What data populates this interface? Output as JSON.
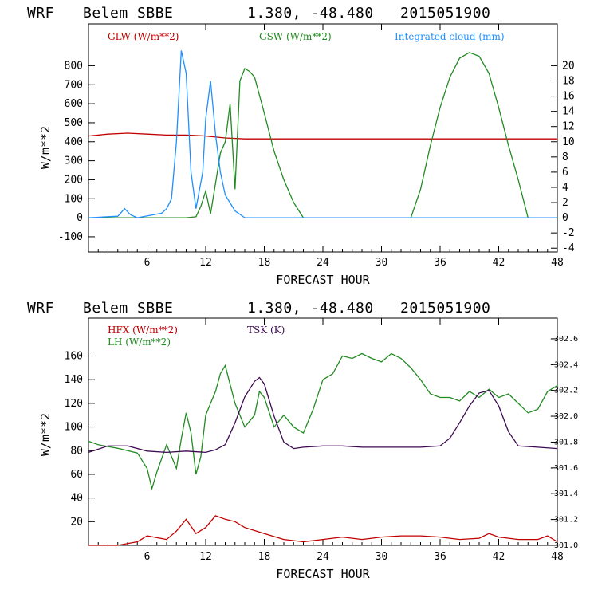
{
  "chart_data": [
    {
      "type": "line",
      "header": {
        "model": "WRF",
        "station": "Belem SBBE",
        "coords": "1.380, -48.480",
        "date": "2015051900"
      },
      "xlabel": "FORECAST HOUR",
      "ylabel": "W/m**2",
      "xlim": [
        0,
        48
      ],
      "ylim": [
        -180,
        1020
      ],
      "y2lim": [
        -4.5,
        25.5
      ],
      "x_ticks": [
        "6",
        "12",
        "18",
        "24",
        "30",
        "36",
        "42",
        "48"
      ],
      "y_ticks": [
        "-100",
        "0",
        "100",
        "200",
        "300",
        "400",
        "500",
        "600",
        "700",
        "800"
      ],
      "y2_ticks": [
        "-4",
        "-2",
        "0",
        "2",
        "4",
        "6",
        "8",
        "10",
        "12",
        "14",
        "16",
        "18",
        "20"
      ],
      "series": [
        {
          "name": "GLW (W/m**2)",
          "color": "#c00000",
          "axis": "left",
          "x": [
            0,
            2,
            4,
            6,
            8,
            10,
            12,
            14,
            16,
            18,
            20,
            22,
            24,
            26,
            28,
            30,
            32,
            34,
            36,
            38,
            40,
            42,
            44,
            46,
            48
          ],
          "y": [
            430,
            440,
            445,
            440,
            435,
            435,
            430,
            420,
            415,
            415,
            415,
            415,
            415,
            415,
            415,
            415,
            415,
            415,
            415,
            415,
            415,
            415,
            415,
            415,
            415
          ]
        },
        {
          "name": "GSW (W/m**2)",
          "color": "#228b22",
          "axis": "left",
          "x": [
            0,
            8,
            9,
            10,
            11,
            11.5,
            12,
            12.5,
            13,
            13.5,
            14,
            14.5,
            15,
            15.5,
            16,
            16.5,
            17,
            18,
            19,
            20,
            21,
            22,
            33,
            34,
            35,
            36,
            37,
            38,
            39,
            40,
            41,
            42,
            43,
            44,
            45,
            48
          ],
          "y": [
            0,
            0,
            0,
            0,
            5,
            60,
            140,
            20,
            180,
            340,
            400,
            600,
            150,
            720,
            785,
            770,
            740,
            550,
            350,
            200,
            80,
            0,
            0,
            150,
            380,
            580,
            740,
            840,
            870,
            850,
            760,
            580,
            380,
            200,
            0,
            0
          ]
        },
        {
          "name": "Integrated cloud (mm)",
          "color": "#1e90ff",
          "axis": "right",
          "x": [
            0,
            3,
            3.7,
            4.3,
            5,
            7.5,
            8,
            8.5,
            9,
            9.5,
            10,
            10.5,
            11,
            11.7,
            12,
            12.5,
            13,
            13.5,
            14,
            15,
            16,
            19,
            20,
            48
          ],
          "y": [
            0,
            0.2,
            1.2,
            0.4,
            0,
            0.6,
            1.2,
            2.5,
            10,
            22,
            19,
            6,
            1.2,
            6,
            13,
            18,
            11,
            6,
            3,
            0.9,
            0,
            0,
            0,
            0
          ]
        }
      ]
    },
    {
      "type": "line",
      "header": {
        "model": "WRF",
        "station": "Belem SBBE",
        "coords": "1.380, -48.480",
        "date": "2015051900"
      },
      "xlabel": "FORECAST HOUR",
      "ylabel": "W/m**2",
      "xlim": [
        0,
        48
      ],
      "ylim": [
        0,
        192
      ],
      "y2lim": [
        301.0,
        302.76
      ],
      "x_ticks": [
        "6",
        "12",
        "18",
        "24",
        "30",
        "36",
        "42",
        "48"
      ],
      "y_ticks": [
        "20",
        "40",
        "60",
        "80",
        "100",
        "120",
        "140",
        "160"
      ],
      "y2_ticks": [
        "301.0",
        "301.2",
        "301.4",
        "301.6",
        "301.8",
        "302.0",
        "302.2",
        "302.4",
        "302.6"
      ],
      "series": [
        {
          "name": "HFX (W/m**2)",
          "color": "#c00000",
          "axis": "left",
          "x": [
            0,
            3,
            5,
            6,
            8,
            9,
            10,
            11,
            12,
            13,
            14,
            15,
            16,
            18,
            20,
            22,
            24,
            26,
            28,
            30,
            32,
            34,
            36,
            38,
            40,
            41,
            42,
            44,
            46,
            47,
            48
          ],
          "y": [
            0,
            0,
            3,
            8,
            5,
            12,
            22,
            10,
            15,
            25,
            22,
            20,
            15,
            10,
            5,
            3,
            5,
            7,
            5,
            7,
            8,
            8,
            7,
            5,
            6,
            10,
            7,
            5,
            5,
            8,
            3
          ]
        },
        {
          "name": "LH (W/m**2)",
          "color": "#228b22",
          "axis": "left",
          "x": [
            0,
            1,
            3,
            5,
            6,
            6.5,
            7,
            8,
            9,
            9.5,
            10,
            10.5,
            11,
            11.5,
            12,
            12.5,
            13,
            13.5,
            14,
            15,
            16,
            17,
            17.5,
            18,
            19,
            20,
            21,
            22,
            23,
            24,
            25,
            26,
            27,
            28,
            29,
            30,
            31,
            32,
            33,
            34,
            35,
            36,
            37,
            38,
            39,
            40,
            41,
            42,
            43,
            44,
            45,
            46,
            47,
            48
          ],
          "y": [
            88,
            85,
            82,
            78,
            65,
            48,
            62,
            85,
            65,
            90,
            112,
            95,
            60,
            75,
            110,
            120,
            130,
            145,
            152,
            120,
            100,
            110,
            130,
            125,
            100,
            110,
            100,
            95,
            115,
            140,
            145,
            160,
            158,
            162,
            158,
            155,
            162,
            158,
            150,
            140,
            128,
            125,
            125,
            122,
            130,
            125,
            132,
            125,
            128,
            120,
            112,
            115,
            130,
            135
          ]
        },
        {
          "name": "TSK (K)",
          "color": "#3d0a52",
          "axis": "right",
          "x": [
            0,
            2,
            4,
            6,
            8,
            10,
            12,
            13,
            14,
            15,
            16,
            17,
            17.5,
            18,
            19,
            20,
            21,
            22,
            24,
            26,
            28,
            30,
            32,
            34,
            36,
            37,
            38,
            39,
            40,
            41,
            42,
            43,
            44,
            46,
            48
          ],
          "y": [
            301.72,
            301.77,
            301.77,
            301.73,
            301.72,
            301.73,
            301.72,
            301.74,
            301.78,
            301.95,
            302.15,
            302.27,
            302.3,
            302.25,
            302.0,
            301.8,
            301.75,
            301.76,
            301.77,
            301.77,
            301.76,
            301.76,
            301.76,
            301.76,
            301.77,
            301.83,
            301.95,
            302.08,
            302.18,
            302.2,
            302.08,
            301.88,
            301.77,
            301.76,
            301.75
          ]
        }
      ]
    }
  ]
}
